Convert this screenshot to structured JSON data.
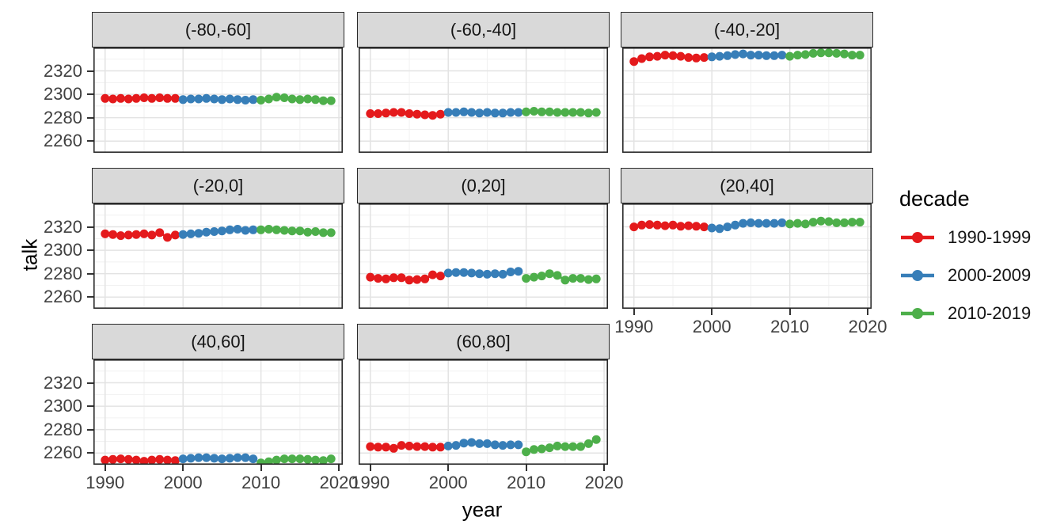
{
  "chart_data": {
    "type": "line",
    "title": "",
    "xlabel": "year",
    "ylabel": "talk",
    "legend_title": "decade",
    "legend_position": "right",
    "grid": "major+minor",
    "x_ticks": [
      1990,
      2000,
      2010,
      2020
    ],
    "y_ticks": [
      2260,
      2280,
      2300,
      2320
    ],
    "x_minor_ticks": [
      1995,
      2005,
      2015
    ],
    "y_minor_ticks": [
      2270,
      2290,
      2310,
      2330
    ],
    "xlim": [
      1988.5,
      2020.5
    ],
    "ylim": [
      2250,
      2340
    ],
    "series_meta": [
      {
        "name": "1990-1999",
        "color": "#E41A1C",
        "start_year": 1990
      },
      {
        "name": "2000-2009",
        "color": "#377EB8",
        "start_year": 2000
      },
      {
        "name": "2010-2019",
        "color": "#4DAF4A",
        "start_year": 2010
      }
    ],
    "facets": [
      {
        "label": "(-80,-60]",
        "values_by_decade": [
          [
            2296.5,
            2296,
            2296.5,
            2296,
            2296.5,
            2297,
            2296.5,
            2297,
            2296.5,
            2296.5
          ],
          [
            2295.5,
            2296,
            2296,
            2296.5,
            2296,
            2295.5,
            2296,
            2295.5,
            2295,
            2295.5
          ],
          [
            2295,
            2296,
            2297.5,
            2297,
            2296,
            2295.5,
            2296,
            2295.5,
            2294.5,
            2294.5
          ]
        ]
      },
      {
        "label": "(-60,-40]",
        "values_by_decade": [
          [
            2283.5,
            2283.5,
            2284,
            2284.5,
            2284.5,
            2283.5,
            2283,
            2282.5,
            2282,
            2283
          ],
          [
            2284.5,
            2284.5,
            2285,
            2284.5,
            2284,
            2284.5,
            2284,
            2284,
            2284.5,
            2284.5
          ],
          [
            2285,
            2285.5,
            2285,
            2285,
            2284.5,
            2284.5,
            2284.5,
            2284.5,
            2284,
            2284.5
          ]
        ]
      },
      {
        "label": "(-40,-20]",
        "values_by_decade": [
          [
            2328,
            2330.5,
            2332,
            2332.5,
            2333.5,
            2333,
            2332.5,
            2331.5,
            2331,
            2331.5
          ],
          [
            2332,
            2332.5,
            2333,
            2334,
            2334.5,
            2333.5,
            2333.5,
            2333,
            2333,
            2333.5
          ],
          [
            2332.5,
            2333.5,
            2334,
            2335,
            2335.5,
            2335.5,
            2335,
            2334.5,
            2333.5,
            2333.5
          ]
        ]
      },
      {
        "label": "(-20,0]",
        "values_by_decade": [
          [
            2314,
            2313.5,
            2312.5,
            2313,
            2313.5,
            2314,
            2313,
            2315,
            2311,
            2313
          ],
          [
            2313.5,
            2314,
            2314.5,
            2315.5,
            2316,
            2316.5,
            2317.5,
            2318,
            2317,
            2317.5
          ],
          [
            2317.5,
            2318,
            2317.5,
            2317,
            2316.5,
            2316.5,
            2315.5,
            2316,
            2315,
            2315
          ]
        ]
      },
      {
        "label": "(0,20]",
        "values_by_decade": [
          [
            2277,
            2276,
            2275.5,
            2276.5,
            2276.5,
            2274.5,
            2275,
            2275.5,
            2279,
            2278
          ],
          [
            2280.5,
            2281,
            2281,
            2280.5,
            2280,
            2279.5,
            2280,
            2279.5,
            2281.5,
            2282
          ],
          [
            2276,
            2277,
            2278,
            2280,
            2278.5,
            2274.5,
            2276,
            2276,
            2275,
            2275.5
          ]
        ]
      },
      {
        "label": "(20,40]",
        "values_by_decade": [
          [
            2320,
            2321.5,
            2322,
            2321.5,
            2321,
            2321.5,
            2320.5,
            2321,
            2320.5,
            2320
          ],
          [
            2319,
            2318.5,
            2320,
            2321.5,
            2323,
            2323.5,
            2323,
            2323,
            2323,
            2323.5
          ],
          [
            2322.5,
            2323,
            2322.5,
            2324,
            2325,
            2324.5,
            2323.5,
            2323.5,
            2324,
            2324
          ]
        ]
      },
      {
        "label": "(40,60]",
        "values_by_decade": [
          [
            2254,
            2254.5,
            2255,
            2254.5,
            2254,
            2253,
            2254,
            2254.5,
            2254,
            2253.5
          ],
          [
            2255,
            2255.5,
            2256,
            2256,
            2255.5,
            2255,
            2255.5,
            2256,
            2256,
            2255
          ],
          [
            2251.5,
            2252.5,
            2254,
            2255,
            2255,
            2255,
            2254.5,
            2254,
            2253.5,
            2255
          ]
        ]
      },
      {
        "label": "(60,80]",
        "values_by_decade": [
          [
            2265.5,
            2265,
            2265,
            2264,
            2266.5,
            2266,
            2265.5,
            2265.5,
            2265,
            2265
          ],
          [
            2266,
            2266.5,
            2268.5,
            2269,
            2268,
            2268,
            2267,
            2266.5,
            2267,
            2267
          ],
          [
            2261,
            2263,
            2263.5,
            2264.5,
            2266,
            2265.5,
            2265.5,
            2265.5,
            2268,
            2271.5
          ]
        ]
      }
    ],
    "colors": {
      "strip_fill": "#d9d9d9",
      "panel_border": "#2a2a2a",
      "grid_major": "#e3e3e3",
      "grid_minor": "#f1f1f1",
      "tick_text": "#404040"
    }
  }
}
